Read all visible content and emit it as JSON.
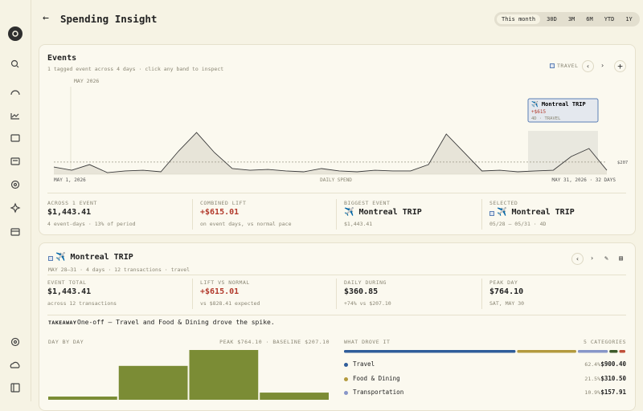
{
  "header": {
    "title": "Spending Insight",
    "ranges": [
      "This month",
      "30D",
      "3M",
      "6M",
      "YTD",
      "1Y"
    ],
    "active_range": 0
  },
  "events": {
    "title": "Events",
    "subtitle": "1 tagged event across 4 days · click any band to inspect",
    "legend": "TRAVEL",
    "chart": {
      "type": "line",
      "month": "MAY 2026",
      "start_label": "MAY 1, 2026",
      "axis_label": "DAILY SPEND",
      "end_label": "MAY 31, 2026 · 32 DAYS",
      "baseline": {
        "value": 207.1,
        "label": "$207"
      },
      "color": "#3a3a3a",
      "values": [
        123,
        68,
        164,
        27,
        55,
        68,
        41,
        397,
        712,
        370,
        96,
        68,
        82,
        55,
        41,
        96,
        55,
        41,
        68,
        55,
        55,
        164,
        685,
        370,
        55,
        68,
        41,
        55,
        68,
        301,
        438,
        68
      ]
    },
    "tooltip": {
      "title": "✈️ Montreal TRIP",
      "lift": "+$615",
      "meta": "4D · TRAVEL"
    },
    "stats": [
      {
        "label": "ACROSS 1 EVENT",
        "value": "$1,443.41",
        "note": "4 event-days · 13% of period"
      },
      {
        "label": "COMBINED LIFT",
        "value": "+$615.01",
        "note": "on event days, vs normal pace"
      },
      {
        "label": "BIGGEST EVENT",
        "value": "✈️ Montreal TRIP",
        "note": "$1,443.41"
      },
      {
        "label": "SELECTED",
        "value": "✈️ Montreal TRIP",
        "note": "05/28 – 05/31 · 4D"
      }
    ]
  },
  "detail": {
    "title": "✈️ Montreal TRIP",
    "meta": "MAY 28–31 · 4 days · 12 transactions · travel",
    "stats": [
      {
        "label": "EVENT TOTAL",
        "value": "$1,443.41",
        "note": "across 12 transactions"
      },
      {
        "label": "LIFT VS NORMAL",
        "value": "+$615.01",
        "note": "vs $828.41 expected"
      },
      {
        "label": "DAILY DURING",
        "value": "$360.85",
        "note": "+74% vs $207.10"
      },
      {
        "label": "PEAK DAY",
        "value": "$764.10",
        "note": "SAT, MAY 30"
      }
    ],
    "takeaway_label": "TAKEAWAY",
    "takeaway": "One-off — Travel and Food & Dining drove the spike.",
    "day_by_day": {
      "type": "bar",
      "title": "DAY BY DAY",
      "summary": "PEAK $764.10 · BASELINE $207.10",
      "color": "#7b8c35",
      "values": [
        49.31,
        520,
        764.1,
        110
      ]
    },
    "drivers": {
      "title": "WHAT DROVE IT",
      "count": "5 CATEGORIES",
      "categories": [
        {
          "name": "Travel",
          "color": "#2f5d9a",
          "share": 62.4,
          "share_label": "62.4%",
          "amount": "$900.40"
        },
        {
          "name": "Food & Dining",
          "color": "#b39a3e",
          "share": 21.5,
          "share_label": "21.5%",
          "amount": "$310.50"
        },
        {
          "name": "Transportation",
          "color": "#8896c8",
          "share": 10.9,
          "share_label": "10.9%",
          "amount": "$157.91"
        }
      ],
      "other_segments": [
        {
          "color": "#3c5a2a",
          "share": 3.0
        },
        {
          "color": "#c0503a",
          "share": 2.2
        }
      ]
    }
  }
}
